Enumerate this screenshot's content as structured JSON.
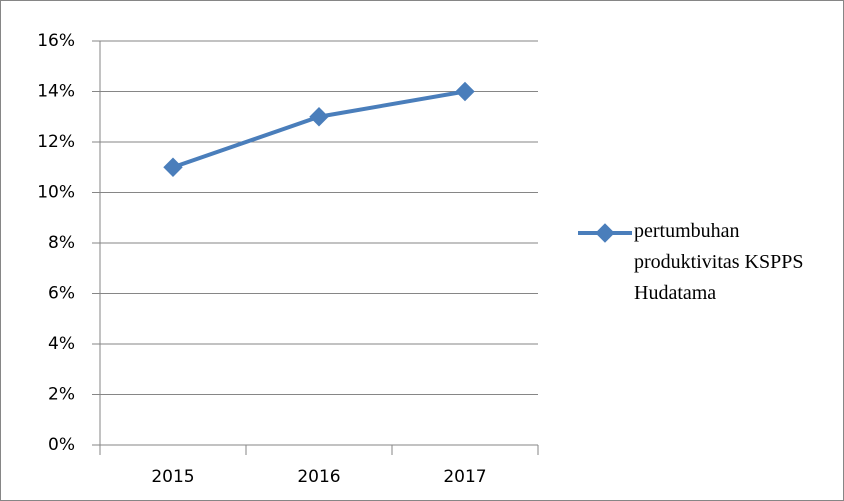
{
  "chart_data": {
    "type": "line",
    "categories": [
      "2015",
      "2016",
      "2017"
    ],
    "series": [
      {
        "name": "pertumbuhan produktivitas KSPPS Hudatama",
        "color": "#4a7ebb",
        "values": [
          11,
          13,
          14
        ]
      }
    ],
    "ylim": [
      0,
      16
    ],
    "yticks": [
      {
        "value": 0,
        "label": "0%"
      },
      {
        "value": 2,
        "label": "2%"
      },
      {
        "value": 4,
        "label": "4%"
      },
      {
        "value": 6,
        "label": "6%"
      },
      {
        "value": 8,
        "label": "8%"
      },
      {
        "value": 10,
        "label": "10%"
      },
      {
        "value": 12,
        "label": "12%"
      },
      {
        "value": 14,
        "label": "14%"
      },
      {
        "value": 16,
        "label": "16%"
      }
    ],
    "grid": true,
    "legend": "right"
  }
}
